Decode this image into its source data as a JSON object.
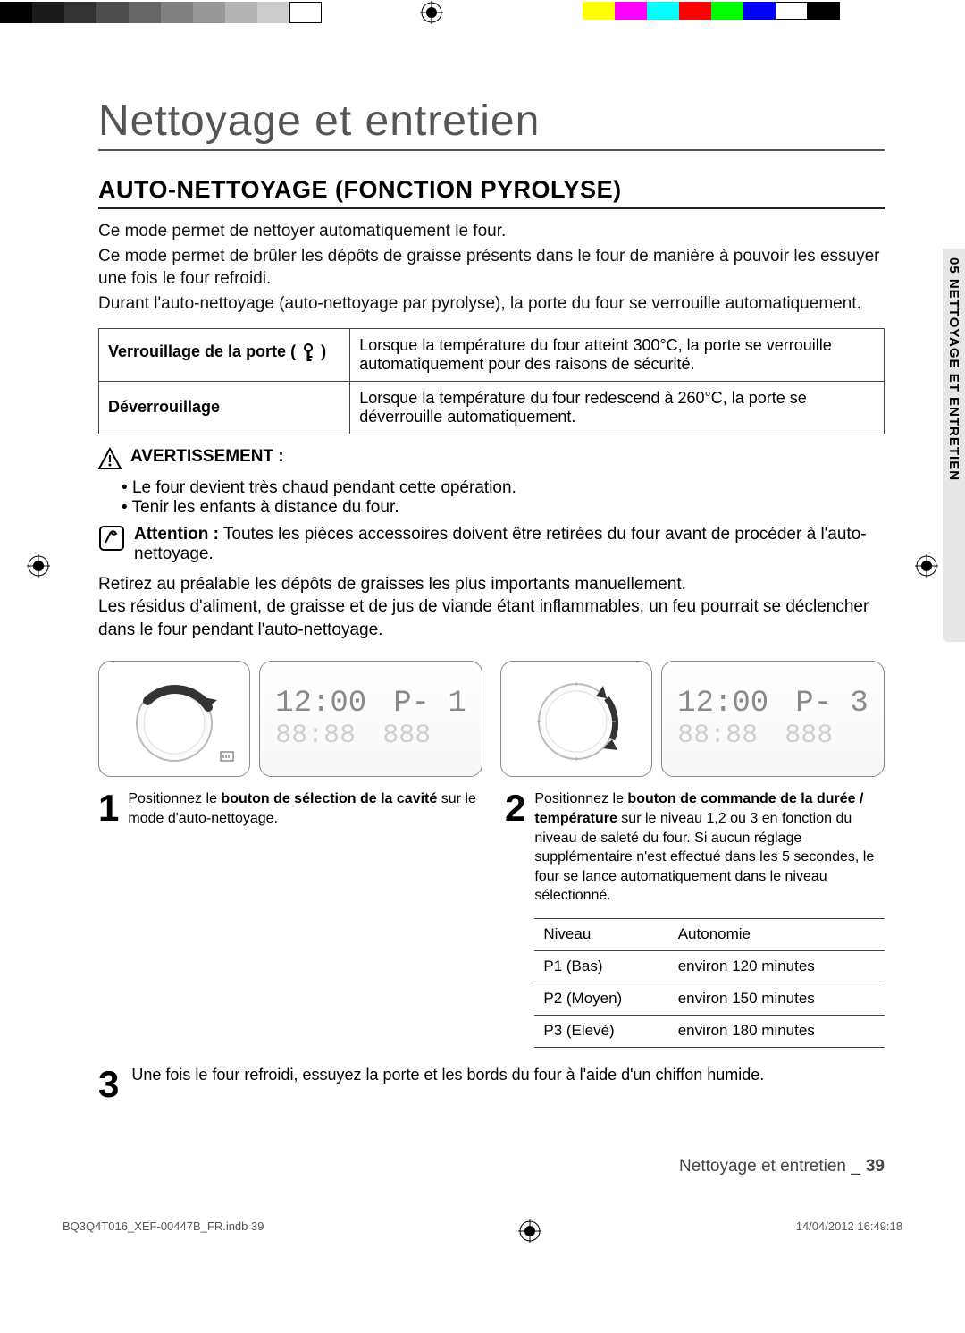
{
  "reg_strip": {
    "left_grays": [
      "#000000",
      "#1a1a1a",
      "#333333",
      "#4d4d4d",
      "#666666",
      "#808080",
      "#999999",
      "#b3b3b3",
      "#cccccc",
      "#ffffff"
    ],
    "right_colors": [
      "#ffff00",
      "#ff00ff",
      "#00ffff",
      "#ff0000",
      "#00ff00",
      "#0000ff",
      "#ffffff",
      "#000000"
    ]
  },
  "chapter_title": "Nettoyage et entretien",
  "section_title": "AUTO-NETTOYAGE (FONCTION PYROLYSE)",
  "side_tab": "05 NETTOYAGE ET ENTRETIEN",
  "intro": {
    "p1": "Ce mode permet de nettoyer automatiquement le four.",
    "p2": "Ce mode permet de brûler les dépôts de graisse présents dans le four de manière à pouvoir les essuyer une fois le four refroidi.",
    "p3": "Durant l'auto-nettoyage (auto-nettoyage par pyrolyse), la porte du four se verrouille automatiquement."
  },
  "lock_table": {
    "row1_label_pre": "Verrouillage de la porte ( ",
    "row1_label_post": " )",
    "row1_text": "Lorsque la température du four atteint 300°C, la porte se verrouille automatiquement pour des raisons de sécurité.",
    "row2_label": "Déverrouillage",
    "row2_text": "Lorsque la température du four redescend à 260°C, la porte se déverrouille automatiquement."
  },
  "warning": {
    "title": "AVERTISSEMENT :",
    "b1": "Le four devient très chaud pendant cette opération.",
    "b2": "Tenir les enfants à distance du four."
  },
  "attention": {
    "label": "Attention :",
    "text": " Toutes les pièces accessoires doivent être retirées du four avant de procéder à l'auto-nettoyage."
  },
  "after": {
    "p1": "Retirez au préalable les dépôts de graisses les plus importants manuellement.",
    "p2": "Les résidus d'aliment, de graisse et de jus de viande étant inflammables, un feu pourrait se déclencher dans le four pendant l'auto-nettoyage."
  },
  "displays": {
    "left_time": "12:00",
    "left_prog": "P- 1",
    "right_time": "12:00",
    "right_prog": "P- 3",
    "ghost": "88:88",
    "ghost2": "888"
  },
  "steps": {
    "s1_num": "1",
    "s1_pre": "Positionnez le ",
    "s1_bold": "bouton de sélection de la cavité",
    "s1_post": " sur le mode d'auto-nettoyage.",
    "s2_num": "2",
    "s2_pre": "Positionnez le ",
    "s2_bold": "bouton de commande de la durée / température",
    "s2_post": " sur le niveau 1,2 ou 3 en fonction du niveau de saleté du four. Si aucun réglage supplémentaire n'est effectué dans les 5 secondes, le four se lance automatiquement dans le niveau sélectionné.",
    "s3_num": "3",
    "s3_text": "Une fois le four refroidi, essuyez la porte et les bords du four à l'aide d'un chiffon humide."
  },
  "levels": {
    "h1": "Niveau",
    "h2": "Autonomie",
    "rows": [
      {
        "n": "P1 (Bas)",
        "t": "environ 120 minutes"
      },
      {
        "n": "P2 (Moyen)",
        "t": "environ 150 minutes"
      },
      {
        "n": "P3 (Elevé)",
        "t": "environ 180 minutes"
      }
    ]
  },
  "footer": {
    "text": "Nettoyage et entretien _",
    "page": "39"
  },
  "printfoot": {
    "left": "BQ3Q4T016_XEF-00447B_FR.indb   39",
    "right": "14/04/2012   16:49:18"
  },
  "colors": {
    "heading": "#555",
    "rule": "#222",
    "seg": "#8a8a8a",
    "seg_ghost": "#d0d0d0"
  }
}
